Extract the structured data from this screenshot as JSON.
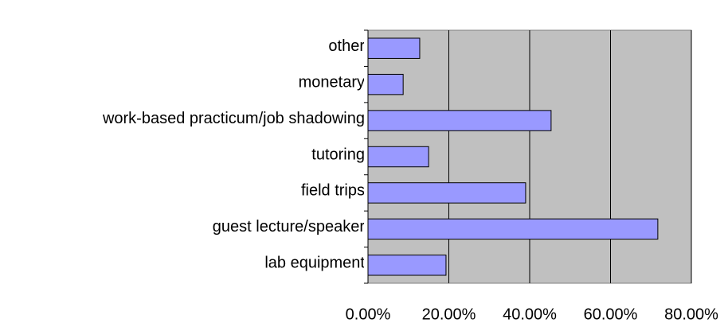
{
  "chart_data": {
    "type": "bar",
    "orientation": "horizontal",
    "categories": [
      "lab equipment",
      "guest lecture/speaker",
      "field trips",
      "tutoring",
      "work-based practicum/job shadowing",
      "monetary",
      "other"
    ],
    "values": [
      19.3,
      71.7,
      39,
      15,
      45.3,
      8.7,
      12.8
    ],
    "color": "#9999ff",
    "xlim": [
      0,
      80
    ],
    "xticks": [
      {
        "value": 0,
        "label": "0.00%"
      },
      {
        "value": 20,
        "label": "20.00%"
      },
      {
        "value": 40,
        "label": "40.00%"
      },
      {
        "value": 60,
        "label": "60.00%"
      },
      {
        "value": 80,
        "label": "80.00%"
      }
    ],
    "grid": true
  }
}
